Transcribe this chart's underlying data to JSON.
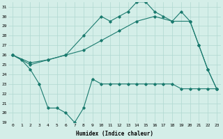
{
  "line1_x": [
    0,
    1,
    2,
    3,
    4,
    5,
    6,
    7,
    8,
    9,
    10,
    11,
    12,
    13,
    14,
    15,
    16,
    17,
    18,
    19,
    20,
    21,
    22,
    23
  ],
  "line1_y": [
    26,
    25.5,
    24.5,
    23,
    20.5,
    20.5,
    20,
    19,
    20.5,
    23.5,
    23,
    23,
    23,
    23,
    23,
    23,
    23,
    23,
    23,
    22.5,
    22.5,
    22.5,
    22.5,
    22.5
  ],
  "line2_x": [
    0,
    2,
    4,
    6,
    8,
    10,
    12,
    14,
    16,
    18,
    20,
    21,
    22,
    23
  ],
  "line2_y": [
    26,
    25.2,
    25.5,
    26,
    26.5,
    27.5,
    28.5,
    29.5,
    30,
    29.5,
    29.5,
    27,
    24.5,
    22.5
  ],
  "line3_x": [
    0,
    2,
    4,
    6,
    8,
    10,
    11,
    12,
    13,
    14,
    15,
    16,
    17,
    18,
    19,
    20,
    21,
    22,
    23
  ],
  "line3_y": [
    26,
    25,
    25.5,
    26,
    28,
    30,
    29.5,
    30,
    30.5,
    31.5,
    31.5,
    30.5,
    30,
    29.5,
    30.5,
    29.5,
    27,
    24.5,
    22.5
  ],
  "color": "#1a7a6e",
  "bg_color": "#d4eee8",
  "grid_color": "#b0d8d0",
  "xlabel": "Humidex (Indice chaleur)",
  "ylim": [
    19,
    31.5
  ],
  "xlim": [
    -0.5,
    23.5
  ],
  "yticks": [
    19,
    20,
    21,
    22,
    23,
    24,
    25,
    26,
    27,
    28,
    29,
    30,
    31
  ],
  "xticks": [
    0,
    1,
    2,
    3,
    4,
    5,
    6,
    7,
    8,
    9,
    10,
    11,
    12,
    13,
    14,
    15,
    16,
    17,
    18,
    19,
    20,
    21,
    22,
    23
  ],
  "marker": "D",
  "markersize": 1.8,
  "linewidth": 0.8
}
